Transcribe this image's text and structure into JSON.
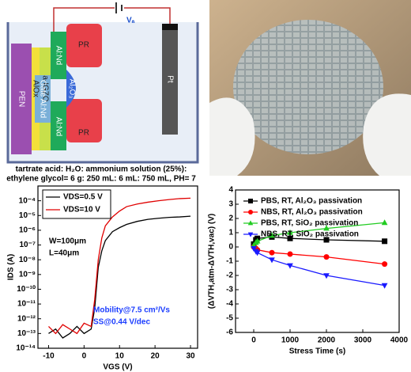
{
  "diagram": {
    "voltage": "Vₐ",
    "labels": [
      "PR",
      "Al:Nd",
      "Al₂O₃",
      "a-IGZO",
      "AlOx",
      "Gate Al:Nd",
      "PEN",
      "Al:Nd",
      "PR",
      "Pt"
    ],
    "solution": [
      "tartrate acid: H₂O: ammonium solution (25%):",
      "ethylene glycol= 6 g: 250 mL: 6 mL: 750 mL, PH= 7"
    ]
  },
  "chart_data": [
    {
      "type": "line",
      "xlabel": "VGS (V)",
      "ylabel": "IDS (A)",
      "log_scale": true,
      "legend": "upper left",
      "legend_frame": true,
      "xlim": [
        -13,
        32
      ],
      "xticks": [
        -10,
        0,
        10,
        20,
        30
      ],
      "ylim": [
        1e-14,
        0.001
      ],
      "yticks": [
        {
          "value": 1e-14,
          "label": "10⁻¹⁴"
        },
        {
          "value": 1e-13,
          "label": "10⁻¹³"
        },
        {
          "value": 1e-12,
          "label": "10⁻¹²"
        },
        {
          "value": 1e-11,
          "label": "10⁻¹¹"
        },
        {
          "value": 1e-10,
          "label": "10⁻¹⁰"
        },
        {
          "value": 1e-09,
          "label": "10⁻⁹"
        },
        {
          "value": 1e-08,
          "label": "10⁻⁸"
        },
        {
          "value": 1e-07,
          "label": "10⁻⁷"
        },
        {
          "value": 1e-06,
          "label": "10⁻⁶"
        },
        {
          "value": 1e-05,
          "label": "10⁻⁵"
        },
        {
          "value": 0.0001,
          "label": "10⁻⁴"
        }
      ],
      "x": [
        -10,
        -8,
        -6,
        -4,
        -2,
        0,
        2,
        3,
        4,
        5,
        6,
        8,
        10,
        12,
        15,
        18,
        21,
        24,
        27,
        30
      ],
      "series": [
        {
          "name": "VDS=0.5 V",
          "color": "#000000",
          "values": [
            1e-13,
            2e-13,
            5e-14,
            1e-13,
            3e-13,
            1e-13,
            2e-13,
            5e-12,
            3e-09,
            4e-08,
            2e-07,
            8e-07,
            1.5e-06,
            2.5e-06,
            4e-06,
            5.5e-06,
            6.5e-06,
            7.5e-06,
            8e-06,
            9e-06
          ]
        },
        {
          "name": "VDS=10 V",
          "color": "#e00000",
          "values": [
            3e-13,
            1e-13,
            4e-13,
            2e-13,
            1e-13,
            5e-13,
            3e-13,
            2e-11,
            1e-08,
            3e-07,
            2e-06,
            8e-06,
            2e-05,
            4e-05,
            6e-05,
            8e-05,
            0.0001,
            0.00012,
            0.00014,
            0.00015
          ]
        }
      ],
      "annotations": [
        {
          "text": "W=100μm",
          "color": "#000000"
        },
        {
          "text": "L=40μm",
          "color": "#000000"
        },
        {
          "text": "Mobility@7.5 cm²/Vs",
          "color": "#1a3cff"
        },
        {
          "text": "SS@0.44 V/dec",
          "color": "#1a3cff"
        }
      ]
    },
    {
      "type": "line",
      "xlabel": "Stress Time (s)",
      "ylabel": "(ΔVTH,atm-ΔVTH,vac) (V)",
      "legend": "upper left",
      "xlim": [
        -500,
        4000
      ],
      "xticks": [
        0,
        1000,
        2000,
        3000,
        4000
      ],
      "ylim": [
        -6,
        4
      ],
      "yticks": [
        -6,
        -5,
        -4,
        -3,
        -2,
        -1,
        0,
        1,
        2,
        3,
        4
      ],
      "x": [
        0,
        60,
        100,
        500,
        1000,
        2000,
        3600
      ],
      "series": [
        {
          "name": "PBS, RT, Al₂O₃ passivation",
          "color": "#000000",
          "marker": "square",
          "values": [
            0.2,
            0.5,
            0.6,
            0.7,
            0.6,
            0.5,
            0.4
          ]
        },
        {
          "name": "NBS, RT, Al₂O₃ passivation",
          "color": "#ff0000",
          "marker": "circle",
          "values": [
            0,
            -0.1,
            -0.2,
            -0.4,
            -0.5,
            -0.7,
            -1.2
          ]
        },
        {
          "name": "PBS, RT, SiO₂ passivation",
          "color": "#22cc22",
          "marker": "triangle-up",
          "values": [
            0.1,
            0.3,
            0.4,
            0.8,
            1.0,
            1.3,
            1.7
          ]
        },
        {
          "name": "NBS, RT, SiO₂ passivation",
          "color": "#1a1aff",
          "marker": "triangle-down",
          "values": [
            -0.1,
            -0.3,
            -0.4,
            -0.9,
            -1.3,
            -2.0,
            -2.7
          ]
        }
      ]
    }
  ]
}
